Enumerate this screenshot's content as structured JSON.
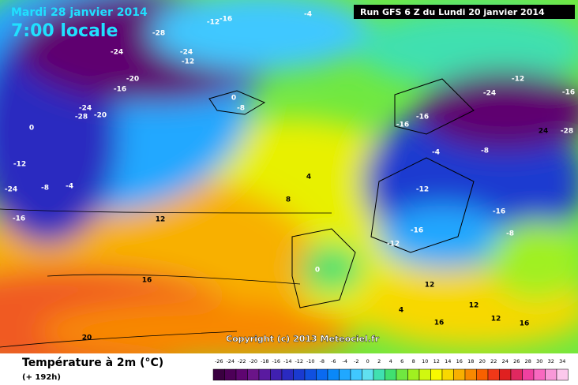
{
  "header": {
    "date": "Mardi 28 janvier 2014",
    "time": "7:00 locale",
    "run": "Run GFS 6 Z du Lundi 20 janvier 2014"
  },
  "copyright": "Copyright (c) 2013 Meteociel.fr",
  "legend": {
    "title": "Température à 2m (°C)",
    "lead": "(+ 192h)"
  },
  "scale": {
    "ticks": [
      -26,
      -24,
      -22,
      -20,
      -18,
      -16,
      -14,
      -12,
      -10,
      -8,
      -6,
      -4,
      -2,
      0,
      2,
      4,
      6,
      8,
      10,
      12,
      14,
      16,
      18,
      20,
      22,
      24,
      26,
      28,
      30,
      32,
      34
    ],
    "colors": [
      "#3a0040",
      "#4d0058",
      "#5e0570",
      "#6a1488",
      "#5a1aa0",
      "#4020b0",
      "#2a2ac0",
      "#1a3ad0",
      "#1050e0",
      "#0a6af0",
      "#0a88f8",
      "#20a8ff",
      "#40c8ff",
      "#60e0f0",
      "#40e0b0",
      "#40e070",
      "#70e840",
      "#a0f020",
      "#d0f810",
      "#f8f800",
      "#f8d800",
      "#f8b000",
      "#f88800",
      "#f86000",
      "#f03818",
      "#e02020",
      "#e02860",
      "#f040a0",
      "#f868c0",
      "#f898d8",
      "#fcc8ec"
    ]
  },
  "contour_labels": [
    -28,
    -24,
    -24,
    -12,
    -20,
    -16,
    -24,
    -28,
    -20,
    -12,
    -16,
    -4,
    0,
    -8,
    0,
    -4,
    -8,
    -12,
    -16,
    -24,
    12,
    16,
    20,
    8,
    4,
    0,
    -12,
    -16,
    -12,
    -8,
    -4,
    -16,
    -8,
    -12,
    -16,
    -28,
    24,
    -16,
    -16,
    12,
    12,
    16,
    16,
    4,
    -24,
    12
  ]
}
